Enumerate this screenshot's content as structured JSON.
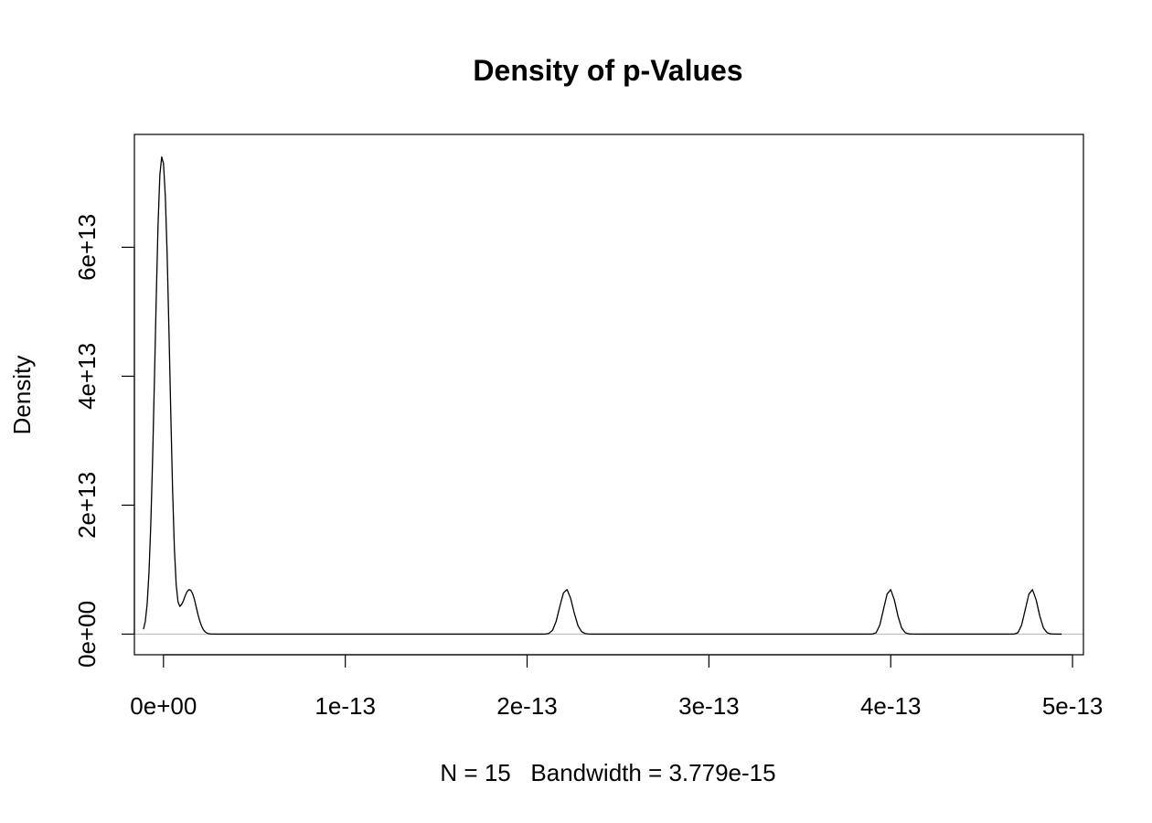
{
  "chart_data": {
    "type": "line",
    "title": "Density of p-Values",
    "xlabel": "N = 15   Bandwidth = 3.779e-15",
    "ylabel": "Density",
    "xlim": [
      -1.6e-14,
      5.06e-13
    ],
    "ylim": [
      -3200000000000.0,
      77500000000000.0
    ],
    "x_ticks": [
      0,
      1e-13,
      2e-13,
      3e-13,
      4e-13,
      5e-13
    ],
    "x_tick_labels": [
      "0e+00",
      "1e-13",
      "2e-13",
      "3e-13",
      "4e-13",
      "5e-13"
    ],
    "y_ticks": [
      0,
      20000000000000.0,
      40000000000000.0,
      60000000000000.0
    ],
    "y_tick_labels": [
      "0e+00",
      "2e+13",
      "4e+13",
      "6e+13"
    ],
    "grid": false,
    "zero_line": true,
    "colors": {
      "line": "#000000",
      "zero_line": "#bebebe",
      "frame": "#000000"
    },
    "series": [
      {
        "x": [
          -1.1e-14,
          -1e-14,
          -9e-15,
          -8e-15,
          -7e-15,
          -6e-15,
          -5e-15,
          -4e-15,
          -3e-15,
          -2e-15,
          -1e-15,
          0,
          1e-15,
          2e-15,
          3e-15,
          4e-15,
          5e-15,
          6e-15,
          7e-15,
          8e-15,
          9e-15,
          1e-14,
          1.1e-14,
          1.2e-14,
          1.3e-14,
          1.4e-14,
          1.5e-14,
          1.6e-14,
          1.7e-14,
          1.8e-14,
          1.9e-14,
          2e-14,
          2.1e-14,
          2.2e-14,
          2.3e-14,
          2.4e-14,
          2.5e-14,
          2.6e-14,
          2.7e-14,
          2.8e-14,
          2.9e-14,
          3e-14,
          3.5e-14,
          5e-14,
          1e-13,
          1.5e-13,
          2e-13,
          2.1e-13,
          2.12e-13,
          2.14e-13,
          2.16e-13,
          2.18e-13,
          2.2e-13,
          2.22e-13,
          2.24e-13,
          2.26e-13,
          2.28e-13,
          2.3e-13,
          2.32e-13,
          2.34e-13,
          2.36e-13,
          2.38e-13,
          2.5e-13,
          3e-13,
          3.5e-13,
          3.88e-13,
          3.9e-13,
          3.92e-13,
          3.94e-13,
          3.96e-13,
          3.98e-13,
          4e-13,
          4.02e-13,
          4.04e-13,
          4.06e-13,
          4.08e-13,
          4.1e-13,
          4.12e-13,
          4.14e-13,
          4.16e-13,
          4.3e-13,
          4.5e-13,
          4.66e-13,
          4.68e-13,
          4.7e-13,
          4.72e-13,
          4.74e-13,
          4.76e-13,
          4.78e-13,
          4.8e-13,
          4.82e-13,
          4.84e-13,
          4.86e-13,
          4.88e-13,
          4.9e-13,
          4.92e-13,
          4.94e-13
        ],
        "y": [
          750000000000.0,
          2000000000000.0,
          4600000000000.0,
          9400000000000.0,
          16900000000000.0,
          27000000000000.0,
          39200000000000.0,
          51900000000000.0,
          63400000000000.0,
          71200000000000.0,
          74000000000000.0,
          73000000000000.0,
          68000000000000.0,
          59000000000000.0,
          47200000000000.0,
          34400000000000.0,
          22400000000000.0,
          13200000000000.0,
          7600000000000.0,
          5000000000000.0,
          4300000000000.0,
          4600000000000.0,
          5200000000000.0,
          6000000000000.0,
          6600000000000.0,
          6900000000000.0,
          6800000000000.0,
          6300000000000.0,
          5400000000000.0,
          4200000000000.0,
          3000000000000.0,
          2000000000000.0,
          1200000000000.0,
          650000000000.0,
          330000000000.0,
          150000000000.0,
          60000000000.0,
          20000000000.0,
          7000000000.0,
          2000000000.0,
          500000000.0,
          100000000.0,
          0,
          0,
          0,
          0,
          0,
          3000000000.0,
          120000000000.0,
          600000000000.0,
          2000000000000.0,
          4300000000000.0,
          6400000000000.0,
          6900000000000.0,
          5500000000000.0,
          3200000000000.0,
          1300000000000.0,
          380000000000.0,
          75000000000.0,
          10000000000.0,
          900000000.0,
          50000000.0,
          0,
          0,
          0,
          200000000.0,
          13000000000.0,
          220000000000.0,
          1400000000000.0,
          3800000000000.0,
          6200000000000.0,
          6900000000000.0,
          5300000000000.0,
          2800000000000.0,
          960000000000.0,
          220000000000.0,
          33000000000.0,
          3200000000.0,
          200000000.0,
          10000000.0,
          0,
          0,
          200000000.0,
          13000000000.0,
          220000000000.0,
          1400000000000.0,
          3800000000000.0,
          6200000000000.0,
          6900000000000.0,
          5300000000000.0,
          2800000000000.0,
          960000000000.0,
          220000000000.0,
          33000000000.0,
          3200000000.0,
          200000000.0,
          10000000.0
        ]
      }
    ]
  }
}
